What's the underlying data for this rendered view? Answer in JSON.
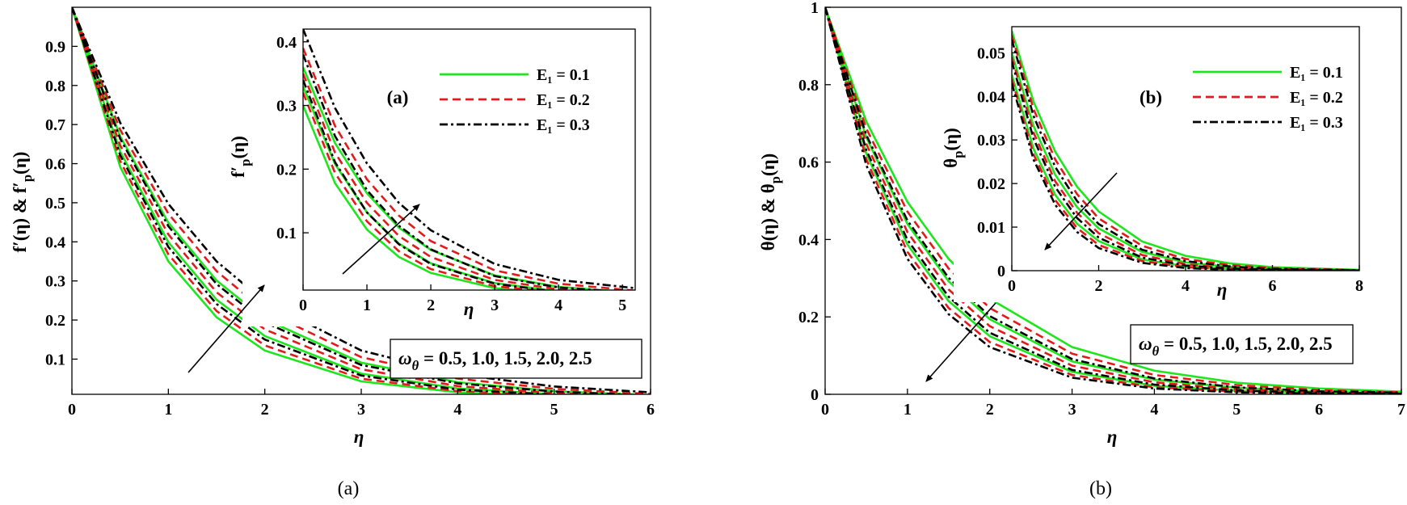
{
  "chart_data": [
    {
      "type": "line",
      "x_label": "η",
      "y_label": [
        "f′(η) & f′",
        "p",
        "(η)"
      ],
      "x": [
        0,
        0.5,
        1,
        1.5,
        2,
        3,
        4,
        5,
        6
      ],
      "xlim": [
        0,
        6
      ],
      "ylim": [
        0.01,
        1
      ],
      "xticks": [
        0,
        1,
        2,
        3,
        4,
        5,
        6
      ],
      "yticks": [
        0.1,
        0.2,
        0.3,
        0.4,
        0.5,
        0.6,
        0.7,
        0.8,
        0.9
      ],
      "annotation": [
        "ω",
        "θ",
        " = 0.5, 1.0, 1.5, 2.0, 2.5"
      ],
      "caption": "(a)",
      "series": [
        {
          "color": "#1ee61e",
          "line_style": "solid",
          "curves": [
            [
              1,
              0.592,
              0.35,
              0.207,
              0.122,
              0.043,
              0.015,
              0.005,
              0.002
            ],
            [
              1,
              0.631,
              0.399,
              0.252,
              0.159,
              0.063,
              0.025,
              0.01,
              0.004
            ],
            [
              1,
              0.67,
              0.449,
              0.301,
              0.202,
              0.091,
              0.041,
              0.018,
              0.008
            ]
          ]
        },
        {
          "color": "#e31a1c",
          "line_style": "dashed",
          "curves": [
            [
              1,
              0.607,
              0.368,
              0.223,
              0.135,
              0.05,
              0.018,
              0.007,
              0.002
            ],
            [
              1,
              0.647,
              0.419,
              0.271,
              0.176,
              0.074,
              0.031,
              0.013,
              0.005
            ],
            [
              1,
              0.687,
              0.472,
              0.325,
              0.223,
              0.105,
              0.05,
              0.024,
              0.011
            ]
          ]
        },
        {
          "color": "#000000",
          "line_style": "dash-dot",
          "curves": [
            [
              1,
              0.622,
              0.387,
              0.241,
              0.15,
              0.058,
              0.022,
              0.009,
              0.003
            ],
            [
              1,
              0.664,
              0.44,
              0.292,
              0.194,
              0.085,
              0.038,
              0.017,
              0.007
            ],
            [
              1,
              0.705,
              0.497,
              0.35,
              0.247,
              0.122,
              0.061,
              0.03,
              0.015
            ]
          ]
        }
      ]
    },
    {
      "type": "line",
      "x_label": "η",
      "y_label": [
        "f′",
        "p",
        "(η)"
      ],
      "x": [
        0,
        0.5,
        1,
        1.5,
        2,
        3,
        4,
        5.2
      ],
      "xlim": [
        0,
        5.2
      ],
      "ylim": [
        0.01,
        0.42
      ],
      "xticks": [
        0,
        1,
        2,
        3,
        4,
        5
      ],
      "yticks": [
        0.1,
        0.2,
        0.3,
        0.4
      ],
      "panel_label": "(a)",
      "legend": "upper right",
      "series": [
        {
          "name": "E₁ = 0.1",
          "color": "#1ee61e",
          "line_style": "solid",
          "curves": [
            [
              0.3,
              0.178,
              0.105,
              0.062,
              0.037,
              0.013,
              0.005,
              0.002
            ],
            [
              0.33,
              0.208,
              0.132,
              0.083,
              0.052,
              0.021,
              0.008,
              0.003
            ],
            [
              0.36,
              0.241,
              0.162,
              0.108,
              0.073,
              0.033,
              0.015,
              0.006
            ]
          ]
        },
        {
          "name": "E₁ = 0.2",
          "color": "#e31a1c",
          "line_style": "dashed",
          "curves": [
            [
              0.32,
              0.194,
              0.118,
              0.071,
              0.043,
              0.016,
              0.006,
              0.002
            ],
            [
              0.35,
              0.226,
              0.147,
              0.095,
              0.062,
              0.026,
              0.011,
              0.005
            ],
            [
              0.39,
              0.268,
              0.184,
              0.127,
              0.087,
              0.041,
              0.02,
              0.009
            ]
          ]
        },
        {
          "name": "E₁ = 0.3",
          "color": "#000000",
          "line_style": "dash-dot",
          "curves": [
            [
              0.34,
              0.211,
              0.132,
              0.082,
              0.051,
              0.02,
              0.007,
              0.003
            ],
            [
              0.38,
              0.252,
              0.167,
              0.111,
              0.074,
              0.032,
              0.014,
              0.006
            ],
            [
              0.42,
              0.296,
              0.209,
              0.147,
              0.104,
              0.051,
              0.026,
              0.013
            ]
          ]
        }
      ]
    },
    {
      "type": "line",
      "x_label": "η",
      "y_label": [
        "θ(η) & θ",
        "p",
        "(η)"
      ],
      "x": [
        0,
        0.5,
        1,
        1.5,
        2,
        3,
        4,
        5,
        6,
        7
      ],
      "xlim": [
        0,
        7
      ],
      "ylim": [
        0,
        1
      ],
      "xticks": [
        0,
        1,
        2,
        3,
        4,
        5,
        6,
        7
      ],
      "yticks": [
        0,
        0.2,
        0.4,
        0.6,
        0.8,
        1
      ],
      "annotation": [
        "ω",
        "θ",
        " = 0.5, 1.0, 1.5, 2.0, 2.5"
      ],
      "caption": "(b)",
      "series": [
        {
          "color": "#1ee61e",
          "line_style": "solid",
          "curves": [
            [
              1,
              0.705,
              0.497,
              0.35,
              0.247,
              0.122,
              0.061,
              0.03,
              0.015,
              0.007
            ],
            [
              1,
              0.664,
              0.44,
              0.292,
              0.194,
              0.085,
              0.038,
              0.017,
              0.007,
              0.003
            ],
            [
              1,
              0.622,
              0.387,
              0.241,
              0.15,
              0.058,
              0.022,
              0.009,
              0.003,
              0.001
            ]
          ]
        },
        {
          "color": "#e31a1c",
          "line_style": "dashed",
          "curves": [
            [
              1,
              0.687,
              0.472,
              0.325,
              0.223,
              0.105,
              0.05,
              0.024,
              0.011,
              0.005
            ],
            [
              1,
              0.647,
              0.419,
              0.271,
              0.176,
              0.074,
              0.031,
              0.013,
              0.005,
              0.002
            ],
            [
              1,
              0.607,
              0.368,
              0.223,
              0.135,
              0.05,
              0.018,
              0.007,
              0.002,
              0.001
            ]
          ]
        },
        {
          "color": "#000000",
          "line_style": "dash-dot",
          "curves": [
            [
              1,
              0.67,
              0.449,
              0.301,
              0.202,
              0.091,
              0.041,
              0.018,
              0.008,
              0.004
            ],
            [
              1,
              0.631,
              0.399,
              0.252,
              0.159,
              0.063,
              0.025,
              0.01,
              0.004,
              0.002
            ],
            [
              1,
              0.592,
              0.35,
              0.207,
              0.122,
              0.043,
              0.015,
              0.005,
              0.002,
              0.001
            ]
          ]
        }
      ]
    },
    {
      "type": "line",
      "x_label": "η",
      "y_label": [
        "θ",
        "p",
        "(η)"
      ],
      "x": [
        0,
        0.5,
        1,
        1.5,
        2,
        3,
        4,
        5,
        6,
        8
      ],
      "xlim": [
        0,
        8
      ],
      "ylim": [
        0,
        0.056
      ],
      "xticks": [
        0,
        2,
        4,
        6,
        8
      ],
      "yticks": [
        0,
        0.01,
        0.02,
        0.03,
        0.04,
        0.05
      ],
      "panel_label": "(b)",
      "legend": "upper right",
      "series": [
        {
          "name": "E₁ = 0.1",
          "color": "#1ee61e",
          "line_style": "solid",
          "curves": [
            [
              0.055,
              0.0388,
              0.0273,
              0.0193,
              0.0136,
              0.0067,
              0.0034,
              0.0017,
              0.0008,
              0.0002
            ],
            [
              0.05,
              0.0332,
              0.022,
              0.0146,
              0.0097,
              0.0043,
              0.0019,
              0.0009,
              0.0004,
              0.0001
            ],
            [
              0.045,
              0.028,
              0.0174,
              0.0108,
              0.0068,
              0.0026,
              0.001,
              0.0004,
              0.0001,
              0
            ]
          ]
        },
        {
          "name": "E₁ = 0.2",
          "color": "#e31a1c",
          "line_style": "dashed",
          "curves": [
            [
              0.054,
              0.0371,
              0.0255,
              0.0176,
              0.012,
              0.0057,
              0.0027,
              0.0013,
              0.0006,
              0.0001
            ],
            [
              0.049,
              0.0317,
              0.0205,
              0.0133,
              0.0086,
              0.0036,
              0.0015,
              0.0006,
              0.0002,
              0
            ],
            [
              0.044,
              0.0267,
              0.0162,
              0.0098,
              0.0059,
              0.0022,
              0.0008,
              0.0003,
              0.0001,
              0
            ]
          ]
        },
        {
          "name": "E₁ = 0.3",
          "color": "#000000",
          "line_style": "dash-dot",
          "curves": [
            [
              0.053,
              0.0355,
              0.0238,
              0.016,
              0.0107,
              0.0048,
              0.0022,
              0.001,
              0.0004,
              0.0001
            ],
            [
              0.048,
              0.0303,
              0.0192,
              0.0121,
              0.0076,
              0.003,
              0.0012,
              0.0005,
              0.0002,
              0
            ],
            [
              0.043,
              0.0255,
              0.0151,
              0.0089,
              0.0052,
              0.0018,
              0.0006,
              0.0002,
              0.0001,
              0
            ]
          ]
        }
      ]
    }
  ]
}
